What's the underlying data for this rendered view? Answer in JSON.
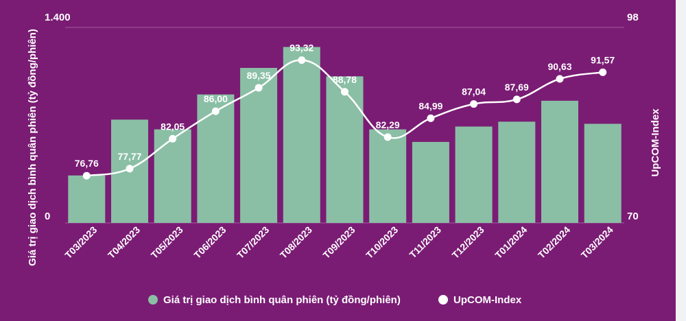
{
  "chart_data": {
    "type": "bar",
    "categories": [
      "T03/2023",
      "T04/2023",
      "T05/2023",
      "T06/2023",
      "T07/2023",
      "T08/2023",
      "T09/2023",
      "T10/2023",
      "T11/2023",
      "T12/2023",
      "T01/2024",
      "T02/2024",
      "T03/2024"
    ],
    "series": [
      {
        "name": "Giá trị giao dịch bình quân phiên (tỷ đồng/phiên)",
        "type": "bar",
        "axis": "left",
        "color": "#8abfa5",
        "values": [
          340,
          740,
          670,
          920,
          1110,
          1260,
          1050,
          670,
          580,
          690,
          725,
          875,
          710
        ]
      },
      {
        "name": "UpCOM-Index",
        "type": "line",
        "axis": "right",
        "color": "#ffffff",
        "values": [
          76.76,
          77.77,
          82.05,
          86.0,
          89.35,
          93.32,
          88.78,
          82.29,
          84.99,
          87.04,
          87.69,
          90.63,
          91.57
        ],
        "labels": [
          "76,76",
          "77,77",
          "82,05",
          "86,00",
          "89,35",
          "93,32",
          "88,78",
          "82,29",
          "84,99",
          "87,04",
          "87,69",
          "90,63",
          "91,57"
        ]
      }
    ],
    "y_left": {
      "label": "Giá trị giao dịch bình quân phiên (tỷ đồng/phiên)",
      "min": 0,
      "max": 1400,
      "tick_labels": [
        "0",
        "1.400"
      ]
    },
    "y_right": {
      "label": "UpCOM-Index",
      "min": 70,
      "max": 98,
      "tick_labels": [
        "70",
        "98"
      ]
    },
    "legend_position": "bottom-center",
    "grid": true
  },
  "legend": {
    "items": [
      {
        "label": "Giá trị giao dịch bình quân phiên (tỷ đồng/phiên)",
        "color": "#8abfa5"
      },
      {
        "label": "UpCOM-Index",
        "color": "#ffffff"
      }
    ]
  },
  "colors": {
    "background": "#7a1c74",
    "bar": "#8abfa5",
    "line": "#ffffff",
    "grid": "#a35a9e"
  }
}
